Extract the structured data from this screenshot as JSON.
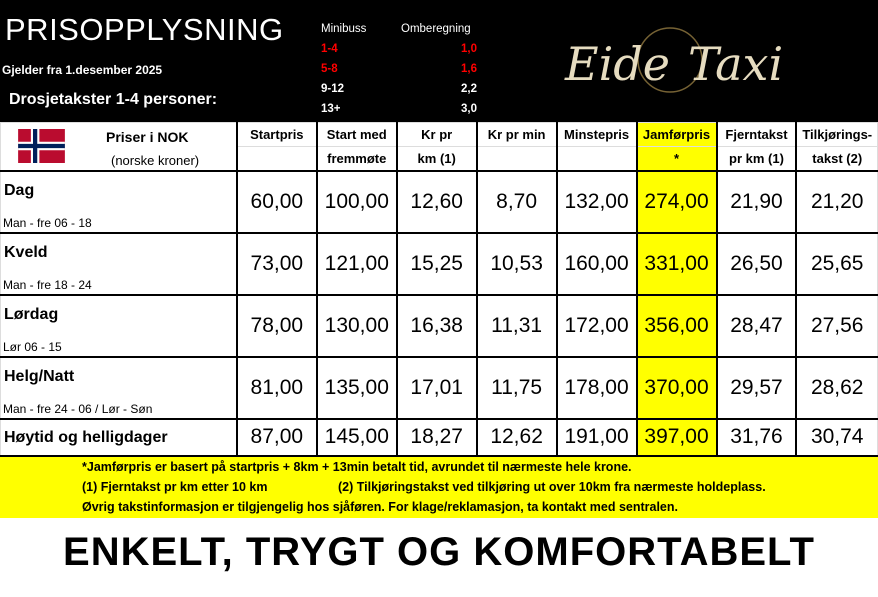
{
  "header": {
    "title": "PRISOPPLYSNING",
    "valid_from": "Gjelder fra 1.desember 2025",
    "subtitle": "Drosjetakster 1-4 personer:",
    "logo_text": "EideTaxi"
  },
  "minibuss": {
    "col1": "Minibuss",
    "col2": "Omberegning",
    "rows": [
      {
        "size": "1-4",
        "factor": "1,0",
        "color": "#ff0000"
      },
      {
        "size": "5-8",
        "factor": "1,6",
        "color": "#ff0000"
      },
      {
        "size": "9-12",
        "factor": "2,2",
        "color": "#ffffff"
      },
      {
        "size": "13+",
        "factor": "3,0",
        "color": "#ffffff"
      }
    ]
  },
  "table": {
    "label_top": "Priser i NOK",
    "label_bottom": "(norske kroner)",
    "columns": [
      {
        "top": "Startpris",
        "bottom": ""
      },
      {
        "top": "Start med",
        "bottom": "fremmøte"
      },
      {
        "top": "Kr pr",
        "bottom": "km (1)"
      },
      {
        "top": "Kr pr min",
        "bottom": ""
      },
      {
        "top": "Minstepris",
        "bottom": ""
      },
      {
        "top": "Jamførpris",
        "bottom": "*"
      },
      {
        "top": "Fjerntakst",
        "bottom": "pr km (1)"
      },
      {
        "top": "Tilkjørings-",
        "bottom": "takst (2)"
      }
    ],
    "rows": [
      {
        "name": "Dag",
        "sub": "Man - fre 06 - 18",
        "values": [
          "60,00",
          "100,00",
          "12,60",
          "8,70",
          "132,00",
          "274,00",
          "21,90",
          "21,20"
        ]
      },
      {
        "name": "Kveld",
        "sub": "Man - fre 18 - 24",
        "values": [
          "73,00",
          "121,00",
          "15,25",
          "10,53",
          "160,00",
          "331,00",
          "26,50",
          "25,65"
        ]
      },
      {
        "name": "Lørdag",
        "sub": "Lør 06 - 15",
        "values": [
          "78,00",
          "130,00",
          "16,38",
          "11,31",
          "172,00",
          "356,00",
          "28,47",
          "27,56"
        ]
      },
      {
        "name": "Helg/Natt",
        "sub": "Man - fre 24 - 06 / Lør - Søn",
        "values": [
          "81,00",
          "135,00",
          "17,01",
          "11,75",
          "178,00",
          "370,00",
          "29,57",
          "28,62"
        ]
      },
      {
        "name": "Høytid og helligdager",
        "sub": "",
        "values": [
          "87,00",
          "145,00",
          "18,27",
          "12,62",
          "191,00",
          "397,00",
          "31,76",
          "30,74"
        ]
      }
    ]
  },
  "footer": {
    "note1": "*Jamførpris er basert på startpris + 8km + 13min betalt tid, avrundet til nærmeste hele krone.",
    "note2": "(1) Fjerntakst pr km etter 10 km",
    "note3": "(2) Tilkjøringstakst ved tilkjøring ut over 10km fra nærmeste holdeplass.",
    "note4": "Øvrig takstinformasjon er tilgjengelig hos sjåføren. For klage/reklamasjon, ta kontakt med sentralen."
  },
  "slogan": "ENKELT, TRYGT OG KOMFORTABELT",
  "colors": {
    "highlight": "#ffff00",
    "flag_red": "#ba0c2f",
    "flag_blue": "#00205b"
  }
}
